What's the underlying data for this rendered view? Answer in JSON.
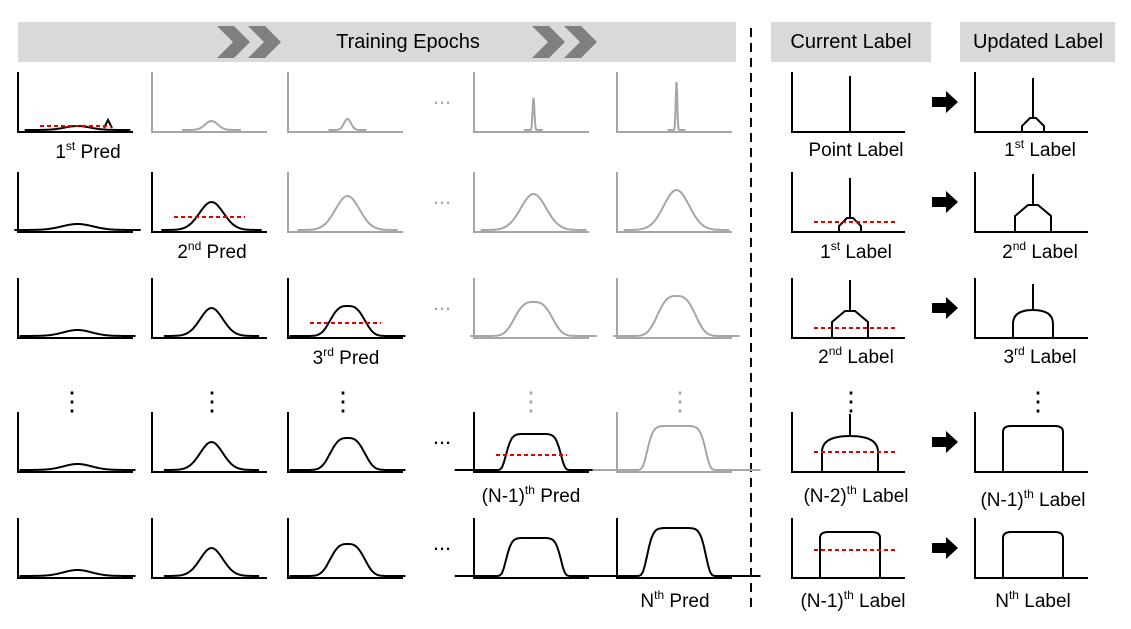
{
  "header": {
    "training_epochs": "Training Epochs",
    "current_label": "Current Label",
    "updated_label": "Updated Label"
  },
  "preds": [
    {
      "ord": "1",
      "sup": "st",
      "word": "Pred"
    },
    {
      "ord": "2",
      "sup": "nd",
      "word": "Pred"
    },
    {
      "ord": "3",
      "sup": "rd",
      "word": "Pred"
    },
    {
      "ord": "(N-1)",
      "sup": "th",
      "word": "Pred"
    },
    {
      "ord": "N",
      "sup": "th",
      "word": "Pred"
    }
  ],
  "current_labels": [
    {
      "ord": "Point Label",
      "sup": "",
      "word": ""
    },
    {
      "ord": "1",
      "sup": "st",
      "word": "Label"
    },
    {
      "ord": "2",
      "sup": "nd",
      "word": "Label"
    },
    {
      "ord": "(N-2)",
      "sup": "th",
      "word": "Label"
    },
    {
      "ord": "(N-1)",
      "sup": "th",
      "word": "Label"
    }
  ],
  "updated_labels": [
    {
      "ord": "1",
      "sup": "st",
      "word": "Label"
    },
    {
      "ord": "2",
      "sup": "nd",
      "word": "Label"
    },
    {
      "ord": "3",
      "sup": "rd",
      "word": "Label"
    },
    {
      "ord": "(N-1)",
      "sup": "th",
      "word": "Label"
    },
    {
      "ord": "N",
      "sup": "th",
      "word": "Label"
    }
  ],
  "ellipsis": "...",
  "vertical_ellipsis": "⋮",
  "colors": {
    "banner": "#d9d9d9",
    "chevron": "#7f7f7f",
    "active_curve": "#000000",
    "faded_curve": "#a6a6a6",
    "dashed_line": "#e00000",
    "separator": "#000000"
  }
}
